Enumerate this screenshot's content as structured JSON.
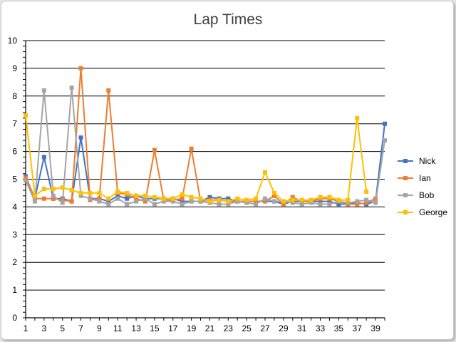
{
  "chart_data": {
    "type": "line",
    "title": "Lap Times",
    "xlabel": "",
    "ylabel": "",
    "ylim": [
      0,
      10
    ],
    "y_major_step": 1,
    "y_minor_step": 0.2,
    "xlim": [
      1,
      40
    ],
    "x_tick_labels": [
      "1",
      "3",
      "5",
      "7",
      "9",
      "11",
      "13",
      "15",
      "17",
      "19",
      "21",
      "23",
      "25",
      "27",
      "29",
      "31",
      "33",
      "35",
      "37",
      "39"
    ],
    "y_tick_labels": [
      "0",
      "1",
      "2",
      "3",
      "4",
      "5",
      "6",
      "7",
      "8",
      "9",
      "10"
    ],
    "grid": "horizontal",
    "legend_position": "right",
    "series": [
      {
        "name": "Nick",
        "color": "#4472C4",
        "x": [
          1,
          2,
          3,
          4,
          5,
          6,
          7,
          8,
          9,
          10,
          11,
          12,
          13,
          14,
          15,
          16,
          17,
          18,
          19,
          20,
          21,
          22,
          23,
          24,
          25,
          26,
          27,
          28,
          29,
          30,
          31,
          32,
          33,
          34,
          35,
          36,
          37,
          38,
          39,
          40
        ],
        "values": [
          5.1,
          4.3,
          5.8,
          4.3,
          4.3,
          4.2,
          6.5,
          4.3,
          4.3,
          4.2,
          4.4,
          4.3,
          4.4,
          4.3,
          4.3,
          4.3,
          4.3,
          4.2,
          4.2,
          4.2,
          4.35,
          4.3,
          4.3,
          4.2,
          4.2,
          4.2,
          4.2,
          4.2,
          4.1,
          4.2,
          4.2,
          4.2,
          4.2,
          4.2,
          4.1,
          4.1,
          4.15,
          4.1,
          4.2,
          7.0
        ]
      },
      {
        "name": "Ian",
        "color": "#ED7D31",
        "x": [
          1,
          2,
          3,
          4,
          5,
          6,
          7,
          8,
          9,
          10,
          11,
          12,
          13,
          14,
          15,
          16,
          17,
          18,
          19,
          20,
          21,
          22,
          23,
          24,
          25,
          26,
          27,
          28,
          29,
          30,
          31,
          32,
          33,
          34,
          35,
          36,
          37,
          38,
          39
        ],
        "values": [
          5.05,
          4.3,
          4.3,
          4.3,
          4.25,
          4.2,
          9.0,
          4.25,
          4.3,
          8.2,
          4.5,
          4.45,
          4.3,
          4.2,
          6.05,
          4.25,
          4.25,
          4.3,
          6.1,
          4.2,
          4.25,
          4.25,
          4.2,
          4.2,
          4.2,
          4.2,
          4.2,
          4.4,
          4.1,
          4.35,
          4.2,
          4.2,
          4.3,
          4.3,
          4.2,
          4.1,
          4.1,
          4.15,
          4.3
        ]
      },
      {
        "name": "Bob",
        "color": "#A5A5A5",
        "x": [
          1,
          2,
          3,
          4,
          5,
          6,
          7,
          8,
          9,
          10,
          11,
          12,
          13,
          14,
          15,
          16,
          17,
          18,
          19,
          20,
          21,
          22,
          23,
          24,
          25,
          26,
          27,
          28,
          29,
          30,
          31,
          32,
          33,
          34,
          35,
          36,
          37,
          38,
          39,
          40
        ],
        "values": [
          4.95,
          4.2,
          8.2,
          4.4,
          4.15,
          8.3,
          4.4,
          4.3,
          4.2,
          4.1,
          4.3,
          4.1,
          4.2,
          4.3,
          4.1,
          4.2,
          4.2,
          4.1,
          4.2,
          4.2,
          4.15,
          4.1,
          4.1,
          4.2,
          4.15,
          4.1,
          4.3,
          4.2,
          4.2,
          4.15,
          4.1,
          4.15,
          4.1,
          4.1,
          4.2,
          4.15,
          4.2,
          4.25,
          4.15,
          6.4
        ]
      },
      {
        "name": "George",
        "color": "#FFC000",
        "x": [
          1,
          2,
          3,
          4,
          5,
          6,
          7,
          8,
          9,
          10,
          11,
          12,
          13,
          14,
          15,
          16,
          17,
          18,
          19,
          20,
          21,
          22,
          23,
          24,
          25,
          26,
          27,
          28,
          29,
          30,
          31,
          32,
          33,
          34,
          35,
          36,
          37,
          38
        ],
        "values": [
          7.3,
          4.4,
          4.65,
          4.65,
          4.7,
          4.6,
          4.5,
          4.5,
          4.5,
          4.3,
          4.55,
          4.5,
          4.4,
          4.4,
          4.35,
          4.3,
          4.3,
          4.45,
          4.35,
          4.3,
          4.2,
          4.25,
          4.2,
          4.3,
          4.25,
          4.3,
          5.25,
          4.5,
          4.2,
          4.25,
          4.25,
          4.25,
          4.35,
          4.35,
          4.25,
          4.25,
          7.2,
          4.55
        ]
      }
    ]
  }
}
